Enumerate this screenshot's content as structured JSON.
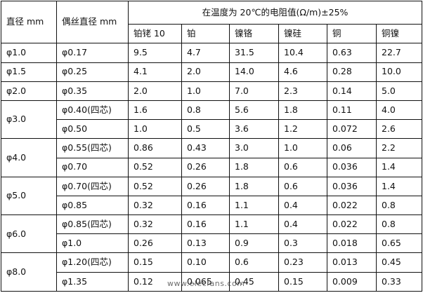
{
  "header": {
    "diameter": "直径 mm",
    "wire_diameter": "偶丝直径 mm",
    "group": "在温度为 20℃的电阻值(Ω/m)±25%",
    "materials": [
      "铂铑 10",
      "铂",
      "镍铬",
      "镍硅",
      "铜",
      "铜镍"
    ]
  },
  "groups": [
    {
      "diameter": "φ1.0",
      "rows": [
        {
          "wire": "φ0.17",
          "values": [
            "9.5",
            "4.7",
            "31.5",
            "10.4",
            "0.63",
            "22.7"
          ]
        }
      ]
    },
    {
      "diameter": "φ1.5",
      "rows": [
        {
          "wire": "φ0.25",
          "values": [
            "4.1",
            "2.0",
            "14.0",
            "4.6",
            "0.28",
            "10.0"
          ]
        }
      ]
    },
    {
      "diameter": "φ2.0",
      "rows": [
        {
          "wire": "φ0.35",
          "values": [
            "2.0",
            "1.0",
            "7.0",
            "2.3",
            "0.14",
            "5.0"
          ]
        }
      ]
    },
    {
      "diameter": "φ3.0",
      "rows": [
        {
          "wire": "φ0.40(四芯)",
          "values": [
            "1.6",
            "0.8",
            "5.6",
            "1.8",
            "0.11",
            "4.0"
          ]
        },
        {
          "wire": "φ0.50",
          "values": [
            "1.0",
            "0.5",
            "3.6",
            "1.2",
            "0.072",
            "2.6"
          ]
        }
      ]
    },
    {
      "diameter": "φ4.0",
      "rows": [
        {
          "wire": "φ0.55(四芯)",
          "values": [
            "0.86",
            "0.43",
            "3.0",
            "1.0",
            "0.06",
            "2.2"
          ]
        },
        {
          "wire": "φ0.70",
          "values": [
            "0.52",
            "0.26",
            "1.8",
            "0.6",
            "0.036",
            "1.4"
          ]
        }
      ]
    },
    {
      "diameter": "φ5.0",
      "rows": [
        {
          "wire": "φ0.70(四芯)",
          "values": [
            "0.52",
            "0.26",
            "1.8",
            "0.6",
            "0.036",
            "1.4"
          ]
        },
        {
          "wire": "φ0.85",
          "values": [
            "0.32",
            "0.16",
            "1.1",
            "0.4",
            "0.022",
            "0.8"
          ]
        }
      ]
    },
    {
      "diameter": "φ6.0",
      "rows": [
        {
          "wire": "φ0.85(四芯)",
          "values": [
            "0.32",
            "0.16",
            "1.1",
            "0.4",
            "0.022",
            "0.8"
          ]
        },
        {
          "wire": "φ1.0",
          "values": [
            "0.26",
            "0.13",
            "0.9",
            "0.3",
            "0.018",
            "0.65"
          ]
        }
      ]
    },
    {
      "diameter": "φ8.0",
      "rows": [
        {
          "wire": "φ1.20(四芯)",
          "values": [
            "0.15",
            "0.10",
            "0.6",
            "0.23",
            "0.013",
            "0.45"
          ]
        },
        {
          "wire": "φ1.35",
          "values": [
            "0.12",
            "0.065",
            "0.45",
            "0.15",
            "0.009",
            "0.33"
          ]
        }
      ]
    }
  ],
  "watermark": "www.elecfans.com"
}
